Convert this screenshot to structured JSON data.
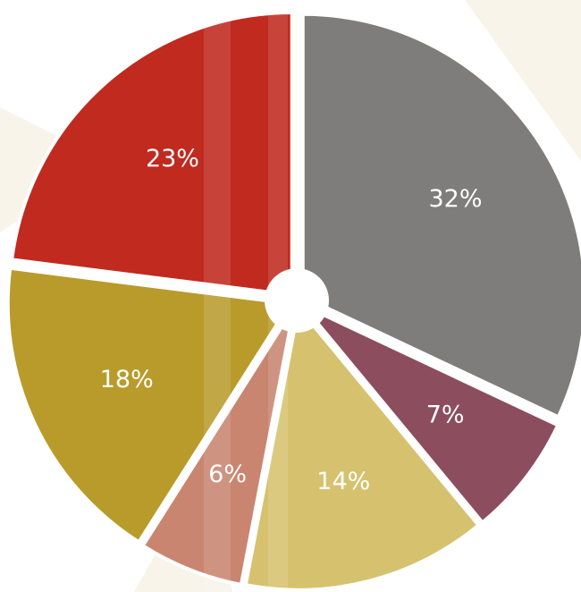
{
  "chart_data": {
    "type": "pie",
    "values": [
      32,
      7,
      14,
      6,
      18,
      23
    ],
    "value_labels": [
      "32%",
      "7%",
      "14%",
      "6%",
      "18%",
      "23%"
    ],
    "colors": [
      "#7f7d7b",
      "#8c4d5f",
      "#d6c26e",
      "#c98570",
      "#b99b2c",
      "#c02a1f"
    ]
  }
}
